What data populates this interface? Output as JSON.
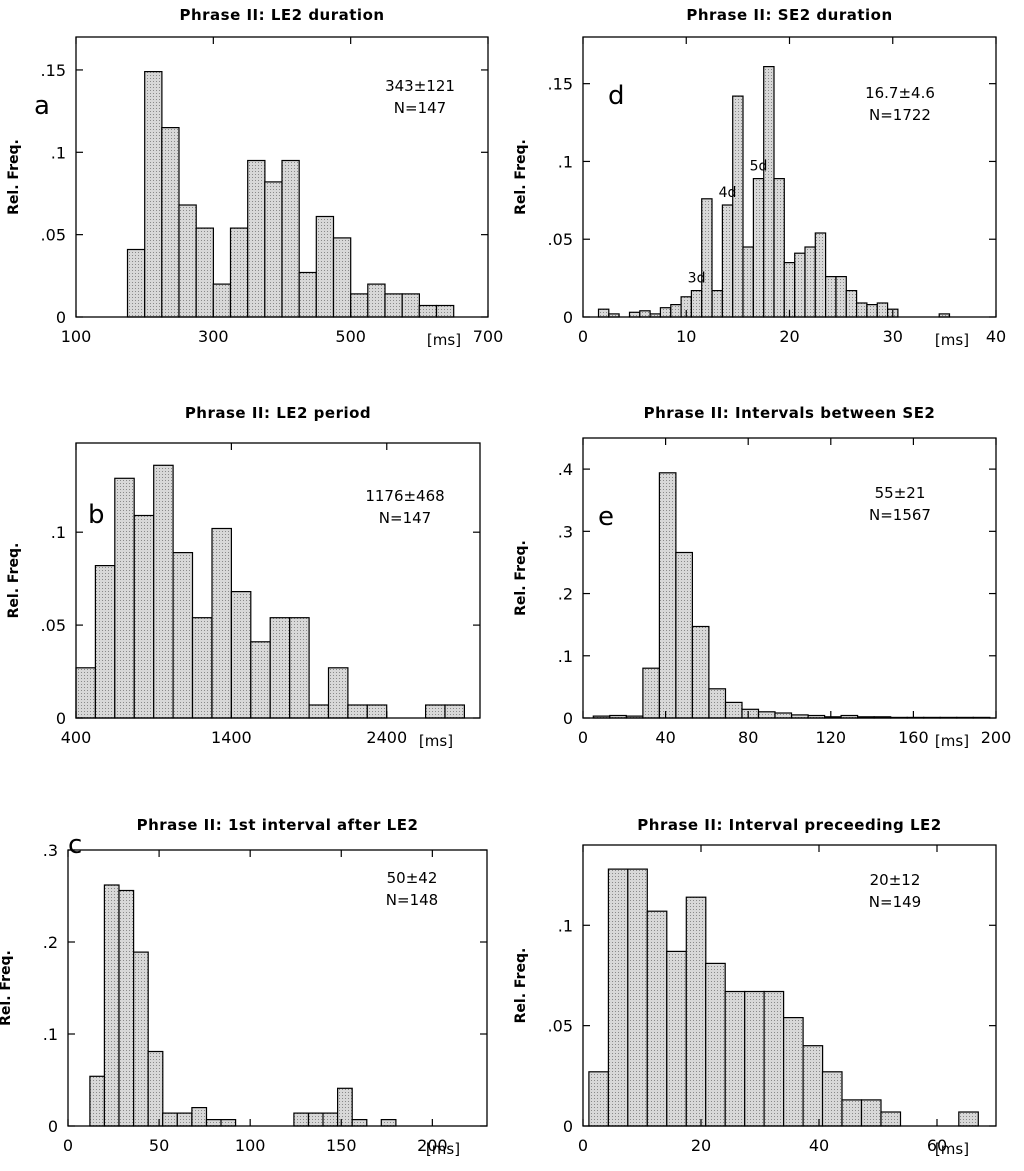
{
  "colors": {
    "bar_fill": "#d8d8d8",
    "bar_stroke": "#000000",
    "axis": "#000000",
    "background": "#ffffff"
  },
  "chart_data": [
    {
      "type": "bar",
      "panel": "a",
      "title": "Phrase II: LE2 duration",
      "ylabel": "Rel. Freq.",
      "xunit": "[ms]",
      "stats": "343±121",
      "n": "N=147",
      "xlim": [
        100,
        700
      ],
      "ylim": [
        0,
        0.17
      ],
      "xticks": [
        100,
        300,
        500,
        700
      ],
      "xtick_labels": [
        "100",
        "300",
        "500",
        "700"
      ],
      "xtick_hide": [],
      "yticks": [
        0,
        0.05,
        0.1,
        0.15
      ],
      "ytick_labels": [
        "0",
        ".05",
        ".1",
        ".15"
      ],
      "bin_start": 175,
      "bin_width": 25,
      "values": [
        0.041,
        0.149,
        0.115,
        0.068,
        0.054,
        0.02,
        0.054,
        0.095,
        0.082,
        0.095,
        0.027,
        0.061,
        0.048,
        0.014,
        0.02,
        0.014,
        0.014,
        0.007,
        0.007
      ],
      "annotations": []
    },
    {
      "type": "bar",
      "panel": "d",
      "title": "Phrase II: SE2 duration",
      "ylabel": "Rel. Freq.",
      "xunit": "[ms]",
      "stats": "16.7±4.6",
      "n": "N=1722",
      "xlim": [
        0,
        40
      ],
      "ylim": [
        0,
        0.18
      ],
      "xticks": [
        0,
        10,
        20,
        30,
        40
      ],
      "xtick_labels": [
        "0",
        "10",
        "20",
        "30",
        "40"
      ],
      "xtick_hide": [],
      "yticks": [
        0,
        0.05,
        0.1,
        0.15
      ],
      "ytick_labels": [
        "0",
        ".05",
        ".1",
        ".15"
      ],
      "bin_start": 1.5,
      "bin_width": 1,
      "values": [
        0.005,
        0.002,
        0,
        0.003,
        0.004,
        0.002,
        0.006,
        0.008,
        0.013,
        0.017,
        0.076,
        0.017,
        0.072,
        0.142,
        0.045,
        0.089,
        0.161,
        0.089,
        0.035,
        0.041,
        0.045,
        0.054,
        0.026,
        0.026,
        0.017,
        0.009,
        0.008,
        0.009,
        0.005,
        0,
        0,
        0,
        0,
        0.002,
        0,
        0,
        0,
        0
      ],
      "annotations": [
        {
          "label": "3d",
          "x": 11
        },
        {
          "label": "4d",
          "x": 14
        },
        {
          "label": "5d",
          "x": 17
        }
      ]
    },
    {
      "type": "bar",
      "panel": "b",
      "title": "Phrase II: LE2 period",
      "ylabel": "Rel. Freq.",
      "xunit": "[ms]",
      "stats": "1176±468",
      "n": "N=147",
      "xlim": [
        400,
        3000
      ],
      "ylim": [
        0,
        0.148
      ],
      "xticks": [
        400,
        1400,
        2400
      ],
      "xtick_labels": [
        "400",
        "1400",
        "2400"
      ],
      "xtick_hide": [],
      "yticks": [
        0,
        0.05,
        0.1
      ],
      "ytick_labels": [
        "0",
        ".05",
        ".1"
      ],
      "bin_start": 400,
      "bin_width": 125,
      "values": [
        0.027,
        0.082,
        0.129,
        0.109,
        0.136,
        0.089,
        0.054,
        0.102,
        0.068,
        0.041,
        0.054,
        0.054,
        0.007,
        0.027,
        0.007,
        0.007,
        0,
        0,
        0.007,
        0.007
      ],
      "annotations": []
    },
    {
      "type": "bar",
      "panel": "e",
      "title": "Phrase II: Intervals between SE2",
      "ylabel": "Rel. Freq.",
      "xunit": "[ms]",
      "stats": "55±21",
      "n": "N=1567",
      "xlim": [
        0,
        200
      ],
      "ylim": [
        0,
        0.45
      ],
      "xticks": [
        0,
        40,
        80,
        120,
        160,
        200
      ],
      "xtick_labels": [
        "0",
        "40",
        "80",
        "120",
        "160",
        "200"
      ],
      "xtick_hide": [],
      "yticks": [
        0,
        0.1,
        0.2,
        0.3,
        0.4
      ],
      "ytick_labels": [
        "0",
        ".1",
        ".2",
        ".3",
        ".4"
      ],
      "bin_start": 5,
      "bin_width": 8,
      "values": [
        0.003,
        0.004,
        0.003,
        0.08,
        0.394,
        0.266,
        0.147,
        0.047,
        0.025,
        0.014,
        0.01,
        0.008,
        0.005,
        0.004,
        0.002,
        0.004,
        0.002,
        0.002,
        0.001,
        0.001,
        0.001,
        0.001,
        0.001,
        0.001
      ],
      "annotations": []
    },
    {
      "type": "bar",
      "panel": "c",
      "title": "Phrase II: 1st interval after LE2",
      "ylabel": "Rel. Freq.",
      "xunit": "[ms]",
      "stats": "50±42",
      "n": "N=148",
      "xlim": [
        0,
        230
      ],
      "ylim": [
        0,
        0.3
      ],
      "xticks": [
        0,
        50,
        100,
        150,
        200
      ],
      "xtick_labels": [
        "0",
        "50",
        "100",
        "150",
        "200"
      ],
      "xtick_hide": [],
      "yticks": [
        0,
        0.1,
        0.2,
        0.3
      ],
      "ytick_labels": [
        "0",
        ".1",
        ".2",
        ".3"
      ],
      "bin_start": 12,
      "bin_width": 8,
      "values": [
        0.054,
        0.262,
        0.256,
        0.189,
        0.081,
        0.014,
        0.014,
        0.02,
        0.007,
        0.007,
        0,
        0,
        0,
        0,
        0.014,
        0.014,
        0.014,
        0.041,
        0.007,
        0,
        0.007
      ],
      "annotations": []
    },
    {
      "type": "bar",
      "panel": "",
      "title": "Phrase II: Interval preceeding LE2",
      "ylabel": "Rel. Freq.",
      "xunit": "[ms]",
      "stats": "20±12",
      "n": "N=149",
      "xlim": [
        0,
        70
      ],
      "ylim": [
        0,
        0.14
      ],
      "xticks": [
        0,
        20,
        40,
        60
      ],
      "xtick_labels": [
        "0",
        "20",
        "40",
        "60"
      ],
      "xtick_hide": [],
      "yticks": [
        0,
        0.05,
        0.1
      ],
      "ytick_labels": [
        "0",
        ".05",
        ".1"
      ],
      "bin_start": 1,
      "bin_width": 3.3,
      "values": [
        0.027,
        0.128,
        0.128,
        0.107,
        0.087,
        0.114,
        0.081,
        0.067,
        0.067,
        0.067,
        0.054,
        0.04,
        0.027,
        0.013,
        0.013,
        0.007,
        0,
        0,
        0,
        0.007
      ],
      "annotations": []
    }
  ]
}
